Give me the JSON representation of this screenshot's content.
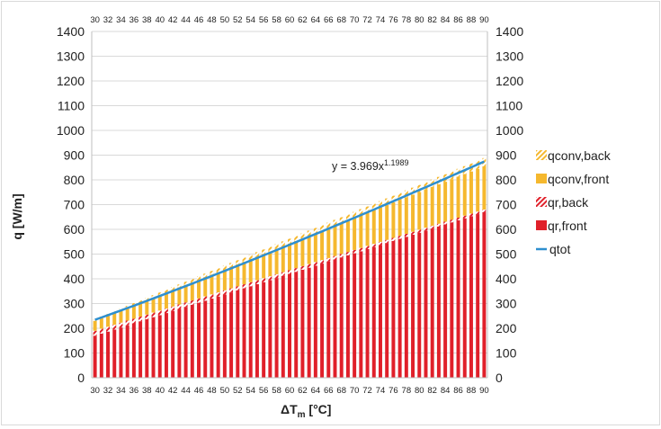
{
  "chart_data": {
    "type": "bar",
    "stacked": true,
    "x": [
      30,
      31,
      32,
      33,
      34,
      35,
      36,
      37,
      38,
      39,
      40,
      41,
      42,
      43,
      44,
      45,
      46,
      47,
      48,
      49,
      50,
      51,
      52,
      53,
      54,
      55,
      56,
      57,
      58,
      59,
      60,
      61,
      62,
      63,
      64,
      65,
      66,
      67,
      68,
      69,
      70,
      71,
      72,
      73,
      74,
      75,
      76,
      77,
      78,
      79,
      80,
      81,
      82,
      83,
      84,
      85,
      86,
      87,
      88,
      89,
      90
    ],
    "x_tick_labels": [
      "30",
      "32",
      "34",
      "36",
      "38",
      "40",
      "42",
      "44",
      "46",
      "48",
      "50",
      "52",
      "54",
      "56",
      "58",
      "60",
      "62",
      "64",
      "66",
      "68",
      "70",
      "72",
      "74",
      "76",
      "78",
      "80",
      "82",
      "84",
      "86",
      "88",
      "90"
    ],
    "xlabel": "ΔT",
    "xlabel_sub": "m",
    "xlabel_unit": " [°C]",
    "ylabel": "q  [W/m]",
    "ylim": [
      0,
      1400
    ],
    "y_ticks": [
      0,
      100,
      200,
      300,
      400,
      500,
      600,
      700,
      800,
      900,
      1000,
      1100,
      1200,
      1300,
      1400
    ],
    "secondary_axes": true,
    "gridlines": true,
    "legend_position": "right",
    "fit_equation": {
      "text": "y = 3.969x",
      "exponent": "1.1989",
      "coefficient": 3.969,
      "power": 1.1989
    },
    "series": [
      {
        "name": "qconv,back",
        "kind": "bar",
        "color": "#f5b82e",
        "pattern": "hatch"
      },
      {
        "name": "qconv,front",
        "kind": "bar",
        "color": "#f5b82e",
        "pattern": "solid"
      },
      {
        "name": "qr,back",
        "kind": "bar",
        "color": "#e0202a",
        "pattern": "hatch"
      },
      {
        "name": "qr,front",
        "kind": "bar",
        "color": "#e0202a",
        "pattern": "solid"
      },
      {
        "name": "qtot",
        "kind": "line",
        "color": "#2e8fcf"
      }
    ],
    "stack_ends": {
      "qr,front": [
        170,
        670
      ],
      "qr,back": [
        190,
        680
      ],
      "qconv,front": [
        230,
        855
      ],
      "qconv,back": [
        236,
        888
      ]
    }
  }
}
